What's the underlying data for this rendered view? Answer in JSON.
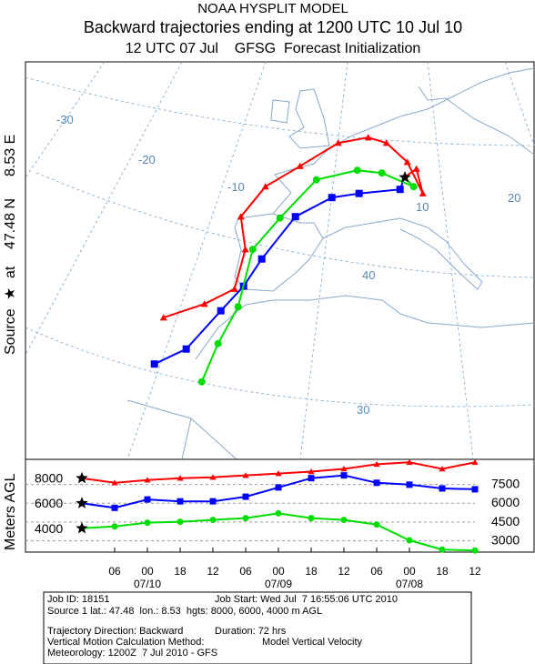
{
  "chart_data": {
    "type": "trajectory",
    "title": "NOAA HYSPLIT MODEL",
    "subtitle": "Backward trajectories ending at 1200 UTC 10 Jul 10",
    "subtitle2": "12 UTC 07 Jul    GFSG  Forecast Initialization",
    "side_label": [
      "Source",
      "at",
      "47.48 N",
      "8.53 E"
    ],
    "source": {
      "lat": 47.48,
      "lon": 8.53
    },
    "lon_labels": [
      -30,
      -20,
      -10,
      10,
      20
    ],
    "lat_labels": [
      40,
      30
    ],
    "ylabel": "Meters AGL",
    "ylim": [
      2100,
      9500
    ],
    "yticks": [
      3000,
      4500,
      6000,
      7500
    ],
    "xlim": [
      0,
      72
    ],
    "x": [
      0,
      6,
      12,
      18,
      24,
      30,
      36,
      42,
      48,
      54,
      60,
      66,
      72
    ],
    "xticks": [
      {
        "value": 6,
        "label": "06"
      },
      {
        "value": 12,
        "label": "00"
      },
      {
        "value": 18,
        "label": "18"
      },
      {
        "value": 24,
        "label": "12"
      },
      {
        "value": 30,
        "label": "06"
      },
      {
        "value": 36,
        "label": "00"
      },
      {
        "value": 42,
        "label": "18"
      },
      {
        "value": 48,
        "label": "12"
      },
      {
        "value": 54,
        "label": "06"
      },
      {
        "value": 60,
        "label": "00"
      },
      {
        "value": 66,
        "label": "18"
      },
      {
        "value": 72,
        "label": "12"
      }
    ],
    "date_labels": [
      {
        "value": 12,
        "label": "07/10"
      },
      {
        "value": 36,
        "label": "07/09"
      },
      {
        "value": 60,
        "label": "07/08"
      }
    ],
    "series": [
      {
        "color": "#ff0000",
        "marker": "triangle",
        "start_height": 8000,
        "lon": [
          8.5,
          9.8,
          10.5,
          8.8,
          6.5,
          4.5,
          1.2,
          -3.0,
          -6.8,
          -9.5,
          -9.0,
          -10.2,
          -13.5,
          -18.0
        ],
        "lat": [
          47.5,
          48.1,
          46.3,
          48.6,
          50.0,
          50.4,
          50.0,
          48.3,
          46.8,
          44.6,
          42.2,
          39.3,
          38.2,
          37.2
        ],
        "heights": [
          8000,
          7630,
          7850,
          8000,
          8070,
          8220,
          8370,
          8520,
          8740,
          9110,
          9260,
          8740,
          9260
        ]
      },
      {
        "color": "#0000ff",
        "marker": "square",
        "start_height": 6000,
        "lon": [
          8.5,
          8.0,
          3.5,
          0.5,
          -3.5,
          -7.2,
          -9.2,
          -11.7,
          -15.5,
          -19.0
        ],
        "lat": [
          47.5,
          46.6,
          46.3,
          46.0,
          44.6,
          41.5,
          39.5,
          37.7,
          34.9,
          33.8
        ],
        "heights": [
          6000,
          5630,
          6300,
          6150,
          6150,
          6520,
          7260,
          8000,
          8220,
          7630,
          7480,
          7180,
          7110
        ]
      },
      {
        "color": "#00dd00",
        "marker": "circle",
        "start_height": 4000,
        "lon": [
          8.5,
          9.5,
          6.0,
          3.3,
          -1.2,
          -5.2,
          -8.2,
          -9.8,
          -12.0,
          -13.8
        ],
        "lat": [
          47.5,
          46.8,
          47.8,
          48.0,
          47.3,
          44.5,
          42.2,
          38.0,
          35.3,
          32.5
        ],
        "heights": [
          4000,
          4150,
          4450,
          4520,
          4670,
          4810,
          5190,
          4810,
          4670,
          4300,
          3040,
          2300,
          2230
        ]
      }
    ],
    "footer": [
      "Job ID: 18151",
      "Job Start: Wed Jul  7 16:55:06 UTC 2010",
      "Source 1 lat.: 47.48  lon.: 8.53  hgts: 8000, 6000, 4000 m AGL",
      "Trajectory Direction: Backward",
      "Duration: 72 hrs",
      "Vertical Motion Calculation Method:",
      "Model Vertical Velocity",
      "Meteorology: 1200Z  7 Jul 2010 - GFS"
    ]
  }
}
